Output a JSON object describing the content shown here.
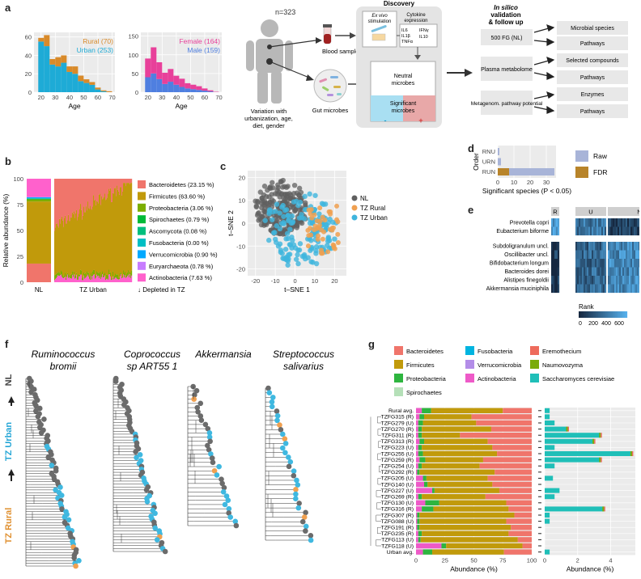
{
  "panel_letters": {
    "a": "a",
    "b": "b",
    "c": "c",
    "d": "d",
    "e": "e",
    "f": "f",
    "g": "g"
  },
  "panel_a": {
    "cohort_n": "n=323",
    "person_caption": [
      "Variation with",
      "urbanization, age,",
      "diet, gender"
    ],
    "blood_label": "Blood samples",
    "gut_label": "Gut microbes",
    "discovery_title": "Discovery",
    "ex_vivo": [
      "Ex vivo",
      "stimulation"
    ],
    "cytokine": [
      "Cytokine",
      "expression"
    ],
    "cytokines": [
      "IL6",
      "IL1β",
      "TNFα",
      "IFNγ",
      "IL10"
    ],
    "neutral": [
      "Neutral",
      "microbes"
    ],
    "significant": [
      "Significant",
      "microbes"
    ],
    "minus": "-",
    "plus": "+",
    "insilico_title": [
      "In silico",
      "validation",
      "& follow up"
    ],
    "left_boxes": [
      "500 FG (NL)",
      "Plasma metabolome",
      "Metagenom. pathway potential"
    ],
    "right_boxes": [
      "Microbial species",
      "Pathways",
      "Selected compounds",
      "Pathways",
      "Enzymes",
      "Pathways"
    ]
  },
  "chart_data": [
    {
      "id": "a-urban-rural",
      "type": "bar",
      "xlabel": "Age",
      "xticks": [
        20,
        30,
        40,
        50,
        60,
        70
      ],
      "yticks": [
        0,
        20,
        40,
        60
      ],
      "ylim": [
        0,
        65
      ],
      "legend": [
        "Rural (70)",
        "Urban (253)"
      ],
      "colors": [
        "#d88a2a",
        "#1eabd6"
      ],
      "bins": [
        18,
        22,
        26,
        30,
        34,
        38,
        42,
        46,
        50,
        54,
        58,
        62,
        66
      ],
      "series": [
        {
          "name": "Urban",
          "values": [
            55,
            50,
            30,
            28,
            32,
            22,
            20,
            12,
            10,
            8,
            3,
            1,
            0
          ]
        },
        {
          "name": "Rural",
          "values": [
            4,
            12,
            6,
            10,
            8,
            6,
            8,
            6,
            4,
            3,
            2,
            1,
            1
          ]
        }
      ]
    },
    {
      "id": "a-female-male",
      "type": "bar",
      "xlabel": "Age",
      "xticks": [
        20,
        30,
        40,
        50,
        60,
        70
      ],
      "yticks": [
        0,
        50,
        100,
        150
      ],
      "ylim": [
        0,
        160
      ],
      "legend": [
        "Female (164)",
        "Male (159)"
      ],
      "colors": [
        "#e8409a",
        "#4f7fe0"
      ],
      "bins": [
        18,
        22,
        26,
        30,
        34,
        38,
        42,
        46,
        50,
        54,
        58,
        62,
        66
      ],
      "series": [
        {
          "name": "Male",
          "values": [
            40,
            50,
            35,
            22,
            28,
            20,
            14,
            10,
            8,
            6,
            4,
            2,
            0
          ]
        },
        {
          "name": "Female",
          "values": [
            50,
            70,
            45,
            30,
            34,
            24,
            22,
            14,
            12,
            10,
            6,
            3,
            1
          ]
        }
      ]
    },
    {
      "id": "b-phyla",
      "type": "bar",
      "ylabel": "Relative abundance (%)",
      "yticks": [
        0,
        25,
        50,
        75,
        100
      ],
      "groups": [
        "NL",
        "TZ Urban"
      ],
      "legend": [
        "Bacteroidetes (23.15 %)",
        "Firmicutes (63.60 %)",
        "Proteobacteria (3.06 %)",
        "Spirochaetes (0.79 %)",
        "Ascomycota (0.08 %)",
        "Fusobacteria (0.00 %)",
        "Verrucomicrobia (0.90 %)",
        "Euryarchaeota (0.78 %)",
        "Actinobacteria (7.63 %)"
      ],
      "depleted_note": "↓ Depleted in TZ",
      "colors": [
        "#f0756b",
        "#c19a0b",
        "#7cae00",
        "#00ba38",
        "#00bf7d",
        "#00bfc4",
        "#00a9ff",
        "#c77cff",
        "#ff61cc"
      ],
      "nl_values": [
        18,
        60,
        2,
        0.5,
        0.5,
        0,
        1,
        0.5,
        17.5
      ]
    },
    {
      "id": "c-tsne",
      "type": "scatter",
      "xlabel": "t–SNE 1",
      "ylabel": "t–SNE 2",
      "xticks": [
        -20,
        -10,
        0,
        10,
        20
      ],
      "yticks": [
        -20,
        -10,
        0,
        10,
        20
      ],
      "xlim": [
        -24,
        26
      ],
      "ylim": [
        -23,
        23
      ],
      "legend": [
        "NL",
        "TZ Rural",
        "TZ Urban"
      ],
      "colors": [
        "#606060",
        "#f0a050",
        "#3fb5dd"
      ]
    },
    {
      "id": "d-significant",
      "type": "bar",
      "ylabel": "Order",
      "xlabel": "Significant species (P < 0.05)",
      "categories": [
        "RNU",
        "URN",
        "RUN"
      ],
      "xticks": [
        0,
        10,
        20,
        30
      ],
      "xlim": [
        0,
        36
      ],
      "legend": [
        "Raw",
        "FDR"
      ],
      "colors": [
        "#a8b4d8",
        "#b8842a"
      ],
      "series": [
        {
          "name": "Raw",
          "values": [
            1,
            2,
            35
          ]
        },
        {
          "name": "FDR",
          "values": [
            0,
            0,
            7
          ]
        }
      ]
    },
    {
      "id": "e-heatmap",
      "type": "heatmap",
      "columns": [
        "R",
        "U",
        "NL"
      ],
      "rows_top": [
        "Prevotella copri",
        "Eubacterium biforme"
      ],
      "rows_bottom": [
        "Subdoligranulum uncl.",
        "Oscillibacter uncl.",
        "Bifidobacterium longum",
        "Bacteroides dorei",
        "Alistipes finegoldii",
        "Akkermansia muciniphila"
      ],
      "side_top": "R>U>N",
      "side_bottom": "R<U<N",
      "legend_title": "Rank",
      "legend_ticks": [
        "0",
        "200",
        "400",
        "600"
      ]
    },
    {
      "id": "g-abundance",
      "type": "bar",
      "xlabel_left": "Abundance (%)",
      "xlabel_right": "Abundance (%)",
      "xticks_left": [
        0,
        25,
        50,
        75,
        100
      ],
      "xticks_right": [
        0,
        2,
        4
      ],
      "samples": [
        "Rural avg.",
        "TZFG315 (R)",
        "TZFG279 (U)",
        "TZFG270 (R)",
        "TZFG311 (R)",
        "TZFG313 (R)",
        "TZFG223 (U)",
        "TZFG255 (U)",
        "TZFG259 (R)",
        "TZFG254 (U)",
        "TZFG292 (R)",
        "TZFG205 (U)",
        "TZFG140 (U)",
        "TZFG227 (U)",
        "TZFG269 (R)",
        "TZFG130 (U)",
        "TZFG316 (R)",
        "TZFG307 (R)",
        "TZFG088 (U)",
        "TZFG191 (R)",
        "TZFG235 (R)",
        "TZFG113 (U)",
        "TZFG118 (U)",
        "Urban avg."
      ],
      "legend": [
        "Bacteroidetes",
        "Firmicutes",
        "Proteobacteria",
        "Spirochaetes",
        "Fusobacteria",
        "Verrucomicrobia",
        "Actinobacteria",
        "Eremothecium",
        "Naumovozyma",
        "Saccharomyces cerevisiae"
      ],
      "colors": [
        "#f0756b",
        "#c19a0b",
        "#2eb53f",
        "#b5e0b8",
        "#00b4e0",
        "#b38de8",
        "#ee5ac8",
        "#ee6b5c",
        "#7aab0a",
        "#1fbfb8"
      ],
      "firmicutes_end": [
        75,
        48,
        52,
        65,
        38,
        62,
        66,
        70,
        58,
        55,
        68,
        62,
        66,
        72,
        60,
        78,
        80,
        85,
        78,
        82,
        80,
        88,
        92,
        76
      ],
      "green_end": [
        8,
        4,
        4,
        3,
        3,
        4,
        3,
        4,
        5,
        3,
        2,
        3,
        3,
        2,
        3,
        12,
        10,
        2,
        2,
        2,
        3,
        2,
        4,
        8
      ],
      "pink_end": [
        5,
        3,
        2,
        2,
        2,
        3,
        2,
        2,
        3,
        2,
        1,
        6,
        7,
        14,
        2,
        8,
        5,
        1,
        1,
        1,
        2,
        2,
        22,
        6
      ],
      "fungi": [
        0.3,
        0.3,
        0.6,
        1.4,
        3.4,
        3.0,
        0.6,
        5.3,
        3.4,
        0.6,
        0.0,
        0.5,
        0.0,
        0.9,
        0.6,
        0.0,
        3.6,
        0.3,
        0.3,
        0.0,
        0.0,
        0.0,
        0.0,
        0.3
      ]
    }
  ],
  "panel_f": {
    "titles": [
      [
        "Ruminococcus",
        "bromii"
      ],
      [
        "Coprococcus",
        "sp ART55 1"
      ],
      [
        "Akkermansia",
        ""
      ],
      [
        "Streptococcus",
        "salivarius"
      ]
    ],
    "side": [
      "TZ Rural",
      "TZ Urban",
      "NL"
    ]
  }
}
